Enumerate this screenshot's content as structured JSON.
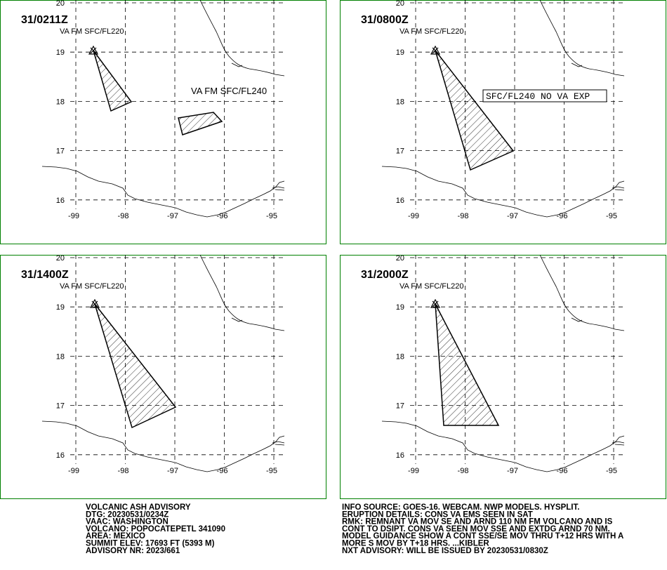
{
  "panels": [
    {
      "time": "31/0211Z",
      "label": "VA FM SFC/FL220",
      "extra_label": "VA FM SFC/FL240"
    },
    {
      "time": "31/0800Z",
      "label": "VA FM SFC/FL220",
      "box_label": "SFC/FL240 NO VA EXP"
    },
    {
      "time": "31/1400Z",
      "label": "VA FM SFC/FL220"
    },
    {
      "time": "31/2000Z",
      "label": "VA FM SFC/FL220"
    }
  ],
  "lat_ticks": [
    20,
    19,
    18,
    17,
    16
  ],
  "lon_ticks": [
    -99,
    -98,
    -97,
    -96,
    -95
  ],
  "advisory_left": [
    "VOLCANIC ASH ADVISORY",
    "DTG: 20230531/0234Z",
    "VAAC: WASHINGTON",
    "VOLCANO: POPOCATEPETL 341090",
    "AREA: MEXICO",
    "SUMMIT ELEV: 17693 FT (5393 M)",
    "ADVISORY NR: 2023/661"
  ],
  "advisory_right": [
    "INFO SOURCE: GOES-16. WEBCAM. NWP MODELS. HYSPLIT.",
    "ERUPTION DETAILS: CONS VA EMS SEEN IN SAT",
    "RMK: REMNANT VA MOV SE AND ARND 110 NM FM VOLCANO AND IS",
    "CONT TO DSIPT. CONS VA SEEN MOV SSE AND EXTDG ARND 70 NM.",
    "MODEL GUIDANCE SHOW A CONT SSE/SE MOV THRU T+12 HRS WITH A",
    "MORE S MOV BY T+18 HRS. ...KIBLER",
    "NXT ADVISORY: WILL BE ISSUED BY 20230531/0830Z"
  ]
}
